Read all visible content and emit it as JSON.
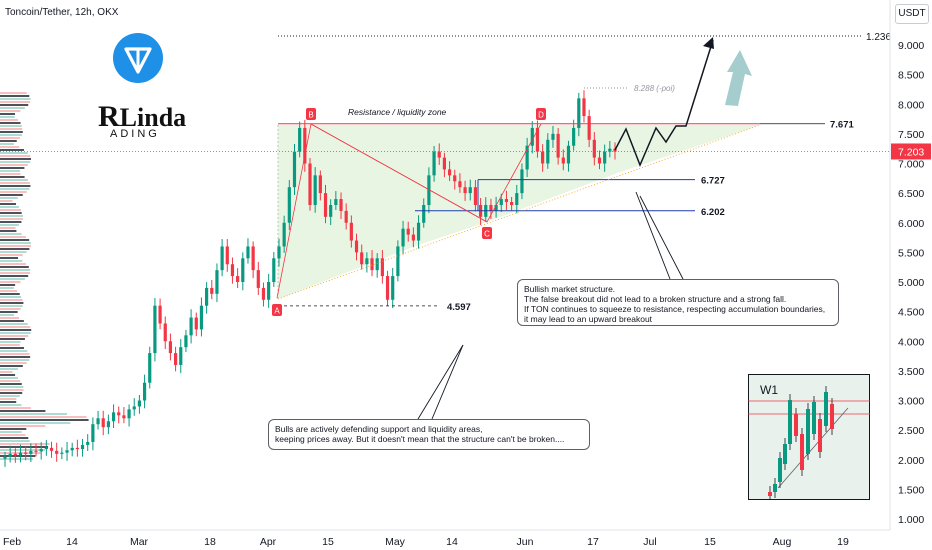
{
  "header": {
    "title": "Toncoin/Tether, 12h, OKX",
    "currency_button": "USDT"
  },
  "logo": {
    "brand_top": "Linda",
    "brand_bottom": "ADING"
  },
  "chart_data": {
    "type": "candlestick",
    "ylim": [
      0.9,
      9.55
    ],
    "yticks": [
      "9.000",
      "8.500",
      "8.000",
      "7.500",
      "7.000",
      "6.500",
      "6.000",
      "5.500",
      "5.000",
      "4.500",
      "4.000",
      "3.500",
      "3.000",
      "2.500",
      "2.000",
      "1.500",
      "1.000"
    ],
    "ytick_values": [
      9.0,
      8.5,
      8.0,
      7.5,
      7.0,
      6.5,
      6.0,
      5.5,
      5.0,
      4.5,
      4.0,
      3.5,
      3.0,
      2.5,
      2.0,
      1.5,
      1.0
    ],
    "xticks": [
      "Feb",
      "14",
      "Mar",
      "18",
      "Apr",
      "15",
      "May",
      "14",
      "Jun",
      "17",
      "Jul",
      "15",
      "Aug",
      "19"
    ],
    "current_price": "7.203",
    "target_level": "1.236",
    "price_levels": [
      {
        "label": "7.671",
        "value": 7.671
      },
      {
        "label": "6.727",
        "value": 6.727
      },
      {
        "label": "6.202",
        "value": 6.202
      },
      {
        "label": "4.597",
        "value": 4.597
      }
    ],
    "peak_label": "8.288 (-poi)",
    "zone_label": "Resistance / liquidity zone",
    "points": [
      {
        "label": "A",
        "color": "#f23645"
      },
      {
        "label": "B",
        "color": "#f23645"
      },
      {
        "label": "C",
        "color": "#f23645"
      },
      {
        "label": "D",
        "color": "#f23645"
      }
    ],
    "closes": [
      2.05,
      2.1,
      2.08,
      2.12,
      2.1,
      2.15,
      2.14,
      2.18,
      2.2,
      2.15,
      2.1,
      2.12,
      2.16,
      2.2,
      2.18,
      2.25,
      2.3,
      2.6,
      2.7,
      2.55,
      2.65,
      2.8,
      2.75,
      2.7,
      2.85,
      2.9,
      3.0,
      3.3,
      3.8,
      4.6,
      4.3,
      4.0,
      3.8,
      3.6,
      3.9,
      4.1,
      4.4,
      4.2,
      4.6,
      4.9,
      4.8,
      5.2,
      5.6,
      5.3,
      5.1,
      5.0,
      5.4,
      5.6,
      5.2,
      4.9,
      4.7,
      5.0,
      5.4,
      5.6,
      6.0,
      6.6,
      7.2,
      7.6,
      7.0,
      6.3,
      6.8,
      6.5,
      6.1,
      6.3,
      6.4,
      6.2,
      6.0,
      5.7,
      5.5,
      5.3,
      5.4,
      5.2,
      5.4,
      5.1,
      4.7,
      5.1,
      5.6,
      5.9,
      5.8,
      5.7,
      6.0,
      6.3,
      6.8,
      7.2,
      7.1,
      6.9,
      6.8,
      6.7,
      6.6,
      6.5,
      6.6,
      6.3,
      6.1,
      6.3,
      6.2,
      6.3,
      6.4,
      6.35,
      6.3,
      6.5,
      6.9,
      7.3,
      7.6,
      7.2,
      7.0,
      7.4,
      7.5,
      7.1,
      7.0,
      7.3,
      7.6,
      8.1,
      7.8,
      7.4,
      7.1,
      7.0,
      7.2,
      7.25,
      7.2
    ],
    "w1_inset": {
      "label": "W1"
    }
  },
  "annotations": {
    "bullish_title": "Bullish market structure.",
    "bullish_line2": "The false breakout did not lead to a broken structure and a strong fall.",
    "bullish_line3": "If TON continues to squeeze to resistance, respecting accumulation boundaries,",
    "bullish_line4": "it may lead to an upward breakout",
    "bulls_line1": "Bulls are actively defending support and liquidity areas,",
    "bulls_line2": "keeping prices away. But it doesn't mean that the structure can't be broken...."
  },
  "colors": {
    "up": "#089981",
    "down": "#f23645",
    "zone_fill": "#e6f4e0",
    "resistance": "#f23645",
    "support_line": "#1e3ea8",
    "price_badge": "#f23645",
    "logo": "#1e90e8"
  }
}
